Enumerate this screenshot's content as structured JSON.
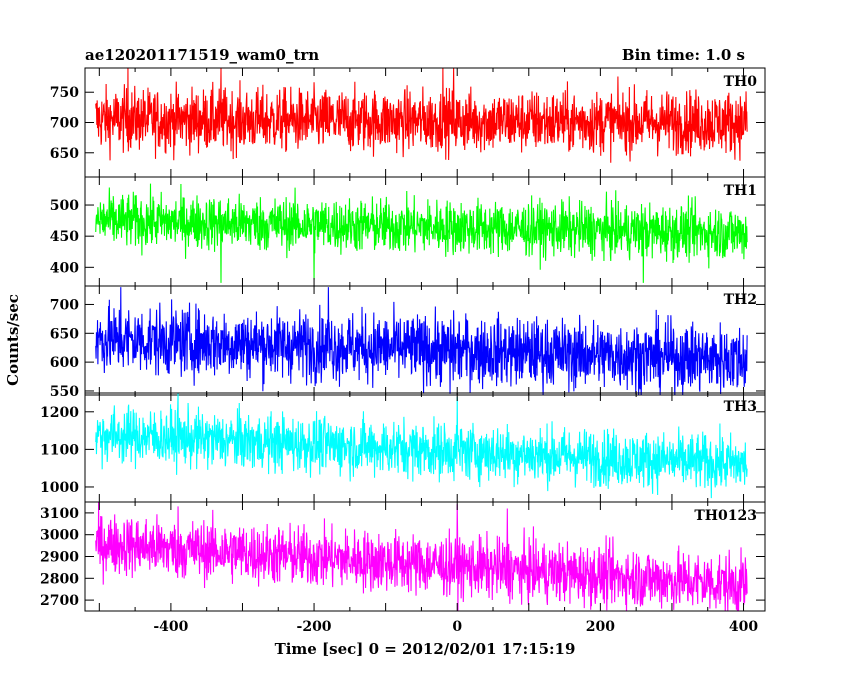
{
  "header": {
    "left_title": "ae120201171519_wam0_trn",
    "right_title": "Bin time: 1.0 s"
  },
  "chart_data": {
    "type": "line",
    "ylabel": "Counts/sec",
    "xlabel": "Time [sec] 0 = 2012/02/01 17:15:19",
    "xlim": [
      -520,
      430
    ],
    "x_ticks": [
      -400,
      -200,
      0,
      200,
      400
    ],
    "x_range_data": [
      -505,
      405
    ],
    "panels": [
      {
        "name": "TH0",
        "color": "#ff0000",
        "ylim": [
          610,
          790
        ],
        "y_ticks": [
          650,
          700,
          750
        ],
        "mean_start": 705,
        "mean_end": 700,
        "noise": 26,
        "spikes": [
          [
            -460,
            790
          ],
          [
            -330,
            790
          ],
          [
            -20,
            790
          ],
          [
            -5,
            790
          ]
        ]
      },
      {
        "name": "TH1",
        "color": "#00ff00",
        "ylim": [
          370,
          545
        ],
        "y_ticks": [
          400,
          450,
          500
        ],
        "mean_start": 475,
        "mean_end": 455,
        "noise": 22,
        "spikes": [
          [
            -200,
            380
          ],
          [
            -330,
            375
          ],
          [
            260,
            375
          ]
        ]
      },
      {
        "name": "TH2",
        "color": "#0000ff",
        "ylim": [
          543,
          732
        ],
        "y_ticks": [
          550,
          600,
          650,
          700
        ],
        "mean_start": 640,
        "mean_end": 605,
        "noise": 30,
        "spikes": [
          [
            -470,
            730
          ],
          [
            -180,
            730
          ],
          [
            -10,
            545
          ]
        ]
      },
      {
        "name": "TH3",
        "color": "#00ffff",
        "ylim": [
          960,
          1250
        ],
        "y_ticks": [
          1000,
          1100,
          1200
        ],
        "mean_start": 1140,
        "mean_end": 1060,
        "noise": 38,
        "spikes": [
          [
            0,
            1240
          ],
          [
            -390,
            1250
          ]
        ]
      },
      {
        "name": "TH0123",
        "color": "#ff00ff",
        "ylim": [
          2650,
          3150
        ],
        "y_ticks": [
          2700,
          2800,
          2900,
          3000,
          3100
        ],
        "mean_start": 2960,
        "mean_end": 2770,
        "noise": 70,
        "spikes": [
          [
            0,
            3140
          ],
          [
            -390,
            3130
          ],
          [
            70,
            3120
          ]
        ]
      }
    ]
  }
}
